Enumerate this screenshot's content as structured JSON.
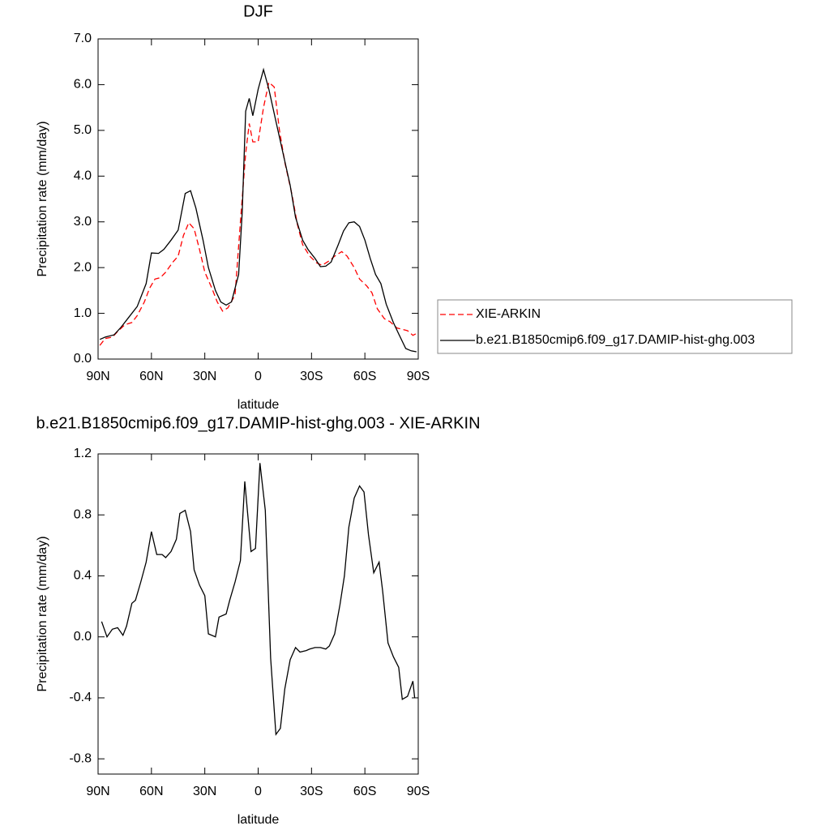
{
  "chart_data": [
    {
      "type": "line",
      "title": "DJF",
      "x_label": "latitude",
      "y_label": "Precipitation rate (mm/day)",
      "xlim": [
        90,
        -90
      ],
      "xticks": [
        {
          "value": 90,
          "label": "90N"
        },
        {
          "value": 60,
          "label": "60N"
        },
        {
          "value": 30,
          "label": "30N"
        },
        0,
        {
          "value": -30,
          "label": "30S"
        },
        {
          "value": -60,
          "label": "60S"
        },
        {
          "value": -90,
          "label": "90S"
        }
      ],
      "ylim": [
        0,
        7
      ],
      "yticks": [
        {
          "value": 0,
          "label": "0.0"
        },
        {
          "value": 1,
          "label": "1.0"
        },
        {
          "value": 2,
          "label": "2.0"
        },
        {
          "value": 3,
          "label": "3.0"
        },
        {
          "value": 4,
          "label": "4.0"
        },
        {
          "value": 5,
          "label": "5.0"
        },
        {
          "value": 6,
          "label": "6.0"
        },
        {
          "value": 7,
          "label": "7.0"
        }
      ],
      "legend": "right",
      "series": [
        {
          "name": "XIE-ARKIN",
          "color": "#ff0000",
          "style": "dashed",
          "x": [
            89,
            86,
            82,
            79,
            75,
            71,
            68,
            64,
            61,
            58,
            55,
            52,
            48,
            45,
            42,
            39,
            36,
            33,
            30,
            26,
            23,
            20,
            17,
            13,
            10,
            7,
            5,
            3,
            0,
            -3,
            -6,
            -9,
            -12,
            -15,
            -19,
            -22,
            -25,
            -29,
            -33,
            -36,
            -40,
            -43,
            -47,
            -50,
            -54,
            -57,
            -61,
            -64,
            -67,
            -71,
            -74,
            -78,
            -81,
            -84,
            -87,
            -90
          ],
          "values": [
            0.3,
            0.45,
            0.48,
            0.6,
            0.75,
            0.8,
            0.95,
            1.25,
            1.55,
            1.75,
            1.78,
            1.9,
            2.12,
            2.25,
            2.7,
            2.98,
            2.85,
            2.4,
            1.9,
            1.55,
            1.25,
            1.05,
            1.12,
            1.4,
            3.0,
            4.5,
            5.15,
            4.75,
            4.75,
            5.5,
            6.05,
            5.95,
            5.0,
            4.3,
            3.6,
            2.95,
            2.5,
            2.25,
            2.1,
            2.05,
            2.15,
            2.25,
            2.35,
            2.25,
            2.0,
            1.75,
            1.6,
            1.45,
            1.1,
            0.88,
            0.82,
            0.68,
            0.65,
            0.62,
            0.52,
            0.58
          ]
        },
        {
          "name": "b.e21.B1850cmip6.f09_g17.DAMIP-hist-ghg.003",
          "color": "#000000",
          "style": "solid",
          "x": [
            89,
            86,
            81,
            77,
            73,
            68,
            63,
            60,
            56,
            53,
            49,
            45,
            41,
            38,
            35,
            31,
            28,
            24,
            21,
            18,
            15,
            11,
            9,
            7,
            5,
            3,
            0,
            -3,
            -6,
            -10,
            -14,
            -18,
            -21,
            -25,
            -28,
            -32,
            -35,
            -38,
            -41,
            -45,
            -48,
            -51,
            -54,
            -57,
            -60,
            -63,
            -66,
            -69,
            -72,
            -76,
            -79,
            -83,
            -86,
            -89
          ],
          "values": [
            0.43,
            0.48,
            0.53,
            0.7,
            0.9,
            1.15,
            1.65,
            2.32,
            2.31,
            2.4,
            2.6,
            2.82,
            3.62,
            3.68,
            3.3,
            2.6,
            2.0,
            1.5,
            1.25,
            1.18,
            1.25,
            1.85,
            3.2,
            5.42,
            5.7,
            5.32,
            5.9,
            6.33,
            5.9,
            5.2,
            4.5,
            3.8,
            3.1,
            2.6,
            2.4,
            2.2,
            2.02,
            2.03,
            2.12,
            2.5,
            2.8,
            2.98,
            3.0,
            2.9,
            2.6,
            2.2,
            1.85,
            1.65,
            1.2,
            0.8,
            0.55,
            0.23,
            0.18,
            0.16
          ]
        }
      ]
    },
    {
      "type": "line",
      "title": "b.e21.B1850cmip6.f09_g17.DAMIP-hist-ghg.003 - XIE-ARKIN",
      "x_label": "latitude",
      "y_label": "Precipitation rate (mm/day)",
      "xlim": [
        90,
        -90
      ],
      "xticks": [
        {
          "value": 90,
          "label": "90N"
        },
        {
          "value": 60,
          "label": "60N"
        },
        {
          "value": 30,
          "label": "30N"
        },
        0,
        {
          "value": -30,
          "label": "30S"
        },
        {
          "value": -60,
          "label": "60S"
        },
        {
          "value": -90,
          "label": "90S"
        }
      ],
      "ylim": [
        -0.9,
        1.2
      ],
      "yticks": [
        -0.8,
        -0.4,
        {
          "value": 0,
          "label": "0.0"
        },
        0.4,
        0.8,
        1.2
      ],
      "series": [
        {
          "color": "#000000",
          "style": "solid",
          "x": [
            88,
            85,
            82,
            79,
            76,
            74,
            71,
            69,
            66,
            63,
            60,
            57,
            54,
            52,
            49,
            46,
            44,
            41,
            38,
            36,
            33,
            30,
            28,
            24,
            22,
            18,
            16,
            13,
            10,
            7.5,
            4,
            1.5,
            -1,
            -4,
            -7,
            -10,
            -12.5,
            -15,
            -18,
            -21,
            -23.5,
            -27,
            -29,
            -32,
            -35,
            -38,
            -40,
            -43,
            -46,
            -48.5,
            -51,
            -54,
            -57,
            -59.5,
            -62,
            -65,
            -68,
            -70,
            -73,
            -76,
            -79,
            -81,
            -84,
            -87,
            -88
          ],
          "values": [
            0.1,
            0.0,
            0.05,
            0.06,
            0.01,
            0.07,
            0.22,
            0.24,
            0.36,
            0.49,
            0.69,
            0.54,
            0.54,
            0.52,
            0.56,
            0.64,
            0.81,
            0.83,
            0.69,
            0.44,
            0.34,
            0.27,
            0.02,
            0.0,
            0.13,
            0.15,
            0.24,
            0.36,
            0.5,
            1.02,
            0.56,
            0.58,
            1.14,
            0.83,
            -0.14,
            -0.64,
            -0.6,
            -0.34,
            -0.15,
            -0.07,
            -0.1,
            -0.09,
            -0.08,
            -0.07,
            -0.07,
            -0.08,
            -0.06,
            0.02,
            0.21,
            0.4,
            0.72,
            0.91,
            0.99,
            0.95,
            0.67,
            0.42,
            0.49,
            0.3,
            -0.04,
            -0.13,
            -0.2,
            -0.41,
            -0.39,
            -0.29,
            -0.4
          ]
        }
      ]
    }
  ]
}
